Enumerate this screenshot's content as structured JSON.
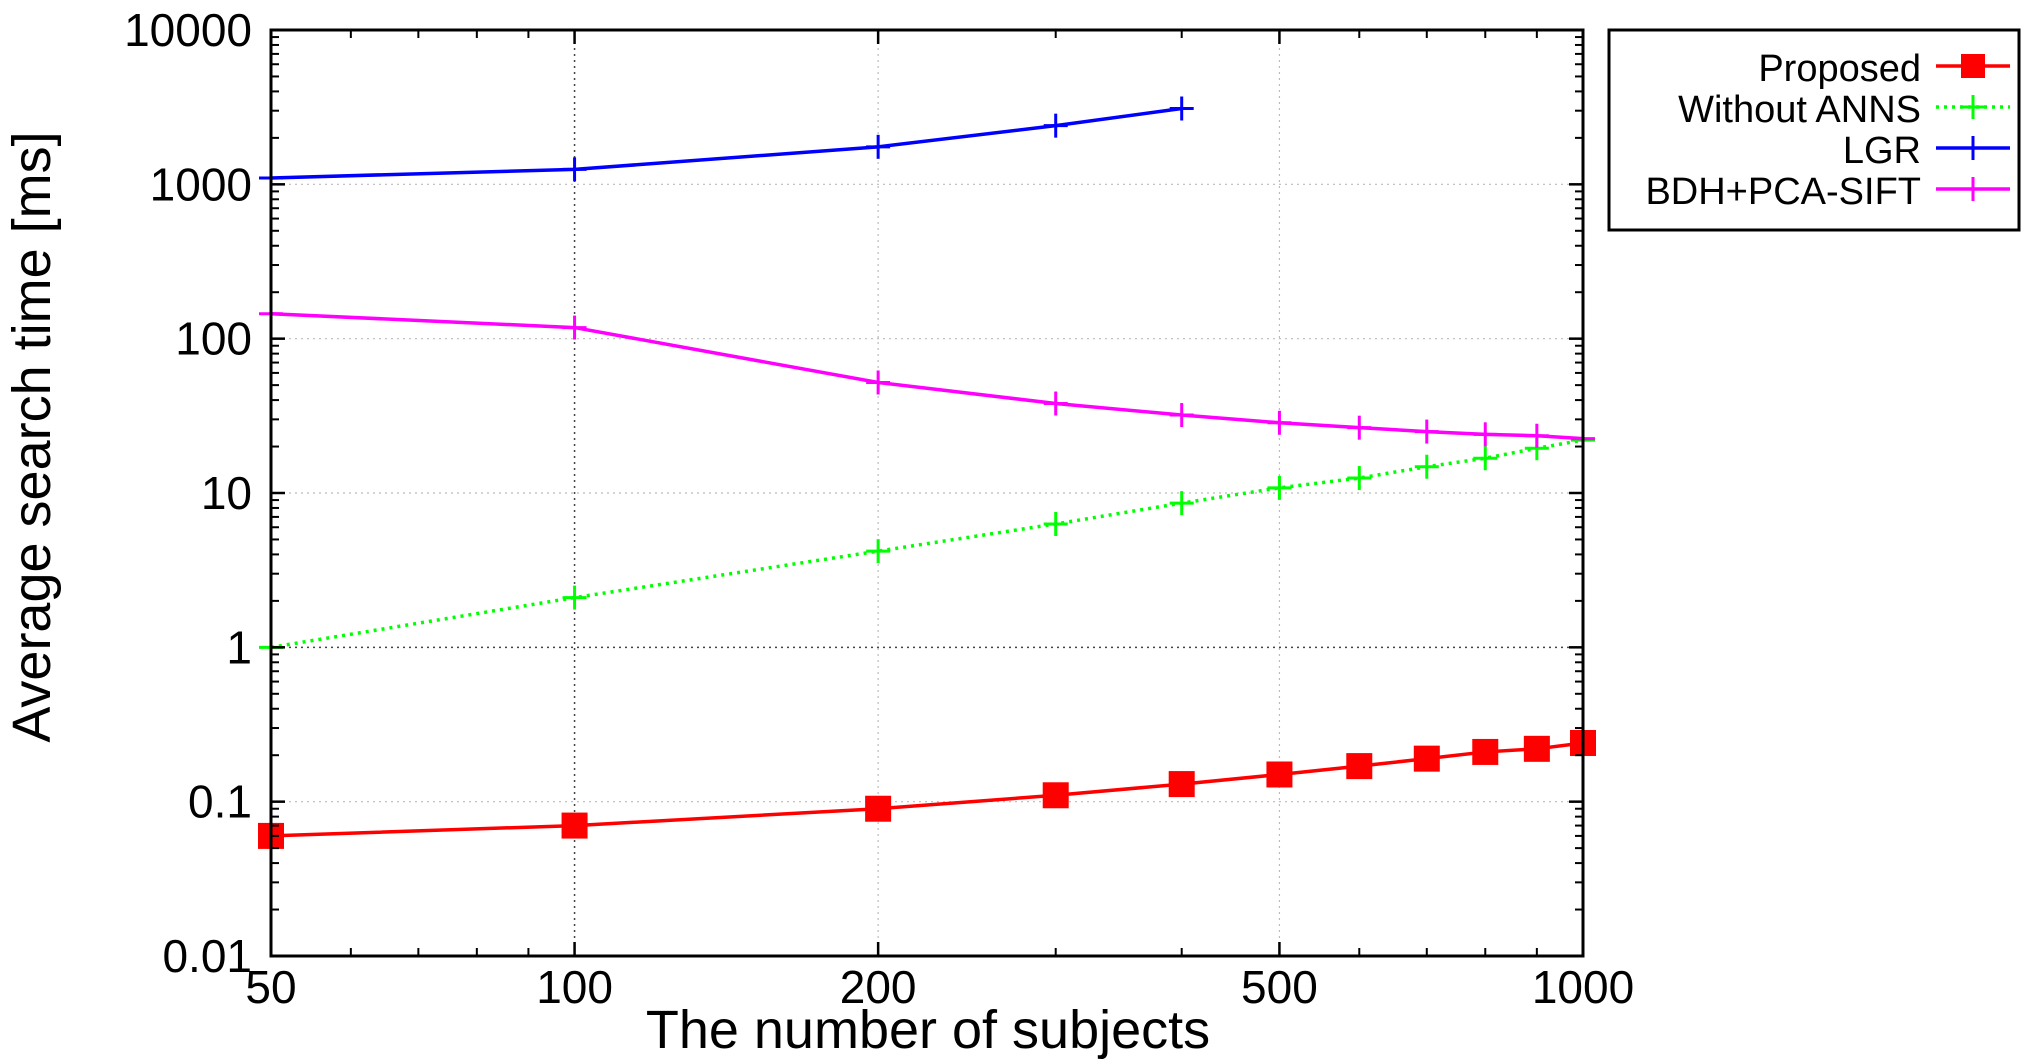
{
  "chart_data": {
    "type": "line",
    "title": "",
    "xlabel": "The number of subjects",
    "ylabel": "Average search time [ms]",
    "x_scale": "log",
    "y_scale": "log",
    "xlim": [
      50,
      1000
    ],
    "ylim": [
      0.01,
      10000
    ],
    "x_ticks": [
      50,
      100,
      200,
      500,
      1000
    ],
    "x_tick_labels": [
      "50",
      "100",
      "200",
      "500",
      "1000"
    ],
    "y_ticks": [
      0.01,
      0.1,
      1,
      10,
      100,
      1000,
      10000
    ],
    "y_tick_labels": [
      "0.01",
      "0.1",
      "1",
      "10",
      "100",
      "1000",
      "10000"
    ],
    "grid": true,
    "legend_position": "top-right, outside plot",
    "series": [
      {
        "name": "Proposed",
        "color": "#ff0000",
        "line_style": "solid",
        "marker": "square",
        "x": [
          50,
          100,
          200,
          300,
          400,
          500,
          600,
          700,
          800,
          900,
          1000
        ],
        "y": [
          0.06,
          0.07,
          0.09,
          0.11,
          0.13,
          0.15,
          0.17,
          0.19,
          0.21,
          0.22,
          0.24
        ]
      },
      {
        "name": "Without ANNS",
        "color": "#00ff00",
        "line_style": "dotted",
        "marker": "plus",
        "x": [
          50,
          100,
          200,
          300,
          400,
          500,
          600,
          700,
          800,
          900,
          1000
        ],
        "y": [
          1.0,
          2.1,
          4.2,
          6.3,
          8.6,
          10.8,
          12.5,
          14.8,
          16.8,
          19.5,
          22.0
        ]
      },
      {
        "name": "LGR",
        "color": "#0000ff",
        "line_style": "solid",
        "marker": "plus",
        "x": [
          50,
          100,
          200,
          300,
          400
        ],
        "y": [
          1100,
          1250,
          1750,
          2400,
          3100
        ]
      },
      {
        "name": "BDH+PCA-SIFT",
        "color": "#ff00ff",
        "line_style": "solid",
        "marker": "plus",
        "x": [
          50,
          100,
          200,
          300,
          400,
          500,
          600,
          700,
          800,
          900,
          1000
        ],
        "y": [
          145,
          118,
          52,
          38,
          32,
          28.5,
          26.5,
          25,
          24,
          23.5,
          22.5
        ]
      }
    ]
  }
}
